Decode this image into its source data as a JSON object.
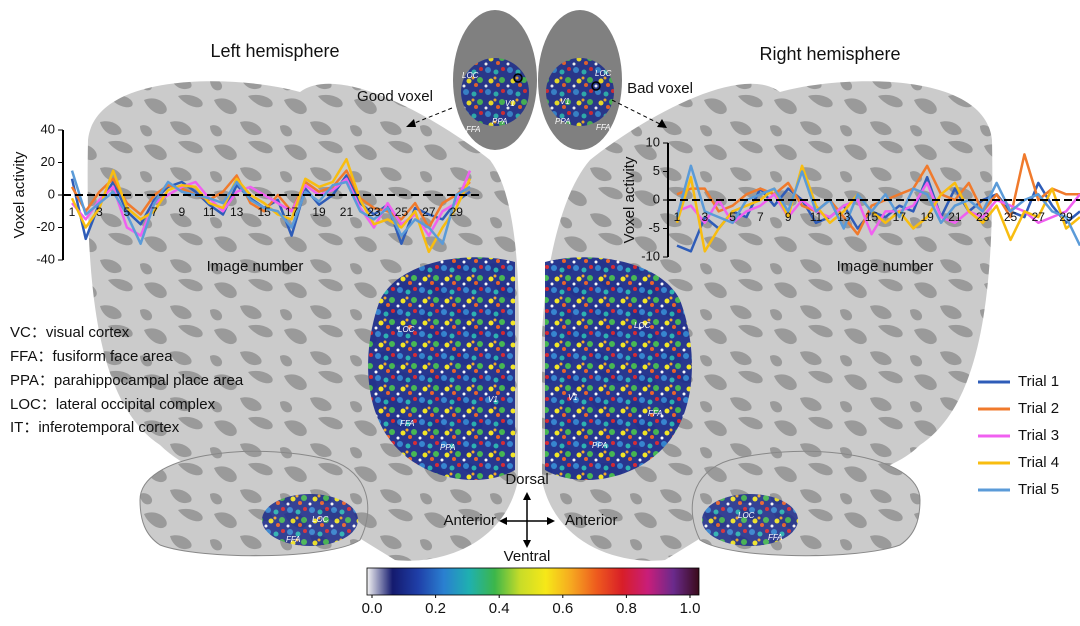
{
  "chart_data": [
    {
      "type": "line",
      "title": "Left hemisphere",
      "xlabel": "Image number",
      "ylabel": "Voxel activity",
      "x": [
        1,
        2,
        3,
        4,
        5,
        6,
        7,
        8,
        9,
        10,
        11,
        12,
        13,
        14,
        15,
        16,
        17,
        18,
        19,
        20,
        21,
        22,
        23,
        24,
        25,
        26,
        27,
        28,
        29,
        30
      ],
      "xlim": [
        1,
        30
      ],
      "xticks": [
        1,
        3,
        5,
        7,
        9,
        11,
        13,
        15,
        17,
        19,
        21,
        23,
        25,
        27,
        29
      ],
      "ylim": [
        -40,
        40
      ],
      "yticks": [
        -40,
        -20,
        0,
        20,
        40
      ],
      "series": [
        {
          "name": "Trial 1",
          "color": "#2e5cb8",
          "values": [
            10,
            -27,
            -5,
            8,
            -10,
            -18,
            -3,
            5,
            8,
            2,
            -6,
            -12,
            6,
            -2,
            -8,
            -3,
            -25,
            4,
            -6,
            0,
            12,
            -5,
            -12,
            -6,
            -30,
            -8,
            -12,
            -15,
            -4,
            2
          ]
        },
        {
          "name": "Trial 2",
          "color": "#f07a2c",
          "values": [
            5,
            -10,
            2,
            10,
            -5,
            -12,
            0,
            6,
            4,
            0,
            -3,
            2,
            12,
            -5,
            -10,
            0,
            -10,
            8,
            2,
            5,
            15,
            -2,
            -8,
            -10,
            -15,
            -5,
            -20,
            -5,
            0,
            8
          ]
        },
        {
          "name": "Trial 3",
          "color": "#f060f0",
          "values": [
            -5,
            -15,
            -3,
            5,
            -20,
            -25,
            -5,
            0,
            5,
            8,
            -2,
            -10,
            2,
            5,
            0,
            -5,
            -10,
            6,
            0,
            3,
            10,
            -8,
            -20,
            -5,
            -18,
            -12,
            -25,
            -10,
            -5,
            15
          ]
        },
        {
          "name": "Trial 4",
          "color": "#f8bd10",
          "values": [
            -2,
            -20,
            -8,
            15,
            -8,
            -15,
            -10,
            3,
            6,
            5,
            -5,
            -8,
            10,
            0,
            -5,
            -12,
            -15,
            10,
            5,
            8,
            22,
            -3,
            -18,
            -15,
            -20,
            -10,
            -35,
            -20,
            -8,
            10
          ]
        },
        {
          "name": "Trial 5",
          "color": "#5b9bd8",
          "values": [
            15,
            -12,
            -5,
            2,
            -12,
            -30,
            -5,
            8,
            2,
            0,
            -2,
            -5,
            8,
            -3,
            -8,
            -10,
            -20,
            2,
            -4,
            6,
            8,
            -10,
            -15,
            -8,
            -25,
            -15,
            -20,
            -30,
            0,
            5
          ]
        }
      ]
    },
    {
      "type": "line",
      "title": "Right hemisphere",
      "xlabel": "Image number",
      "ylabel": "Voxel activity",
      "x": [
        1,
        2,
        3,
        4,
        5,
        6,
        7,
        8,
        9,
        10,
        11,
        12,
        13,
        14,
        15,
        16,
        17,
        18,
        19,
        20,
        21,
        22,
        23,
        24,
        25,
        26,
        27,
        28,
        29,
        30
      ],
      "xlim": [
        1,
        30
      ],
      "xticks": [
        1,
        3,
        5,
        7,
        9,
        11,
        13,
        15,
        17,
        19,
        21,
        23,
        25,
        27,
        29
      ],
      "ylim": [
        -10,
        10
      ],
      "yticks": [
        -10,
        -5,
        0,
        5,
        10
      ],
      "series": [
        {
          "color": "#2e5cb8",
          "values": [
            -8,
            -9,
            -3,
            -5,
            -2,
            -3,
            2,
            -1,
            2,
            0,
            -4,
            -3,
            -1,
            -5,
            -2,
            -3,
            -1,
            -2,
            4,
            -3,
            2,
            -2,
            0,
            1,
            -2,
            -3,
            3,
            -1,
            -4,
            -2
          ]
        },
        {
          "color": "#f07a2c",
          "values": [
            1,
            2,
            2,
            -2,
            -1,
            1,
            2,
            1,
            3,
            -1,
            -2,
            0,
            -3,
            -6,
            -1,
            0,
            1,
            2,
            6,
            1,
            0,
            3,
            -2,
            1,
            -3,
            8,
            0,
            2,
            1,
            1
          ]
        },
        {
          "color": "#f060f0",
          "values": [
            -2,
            -1,
            -4,
            0,
            -4,
            -2,
            -1,
            1,
            -3,
            0,
            -2,
            -3,
            -1,
            0,
            -6,
            -2,
            -2,
            -1,
            3,
            -3,
            -4,
            -2,
            -3,
            0,
            -1,
            -2,
            -4,
            -3,
            -2,
            1
          ]
        },
        {
          "color": "#f8bd10",
          "values": [
            -4,
            4,
            -9,
            -5,
            -2,
            -1,
            0,
            2,
            -3,
            6,
            -1,
            -4,
            -2,
            1,
            -2,
            -4,
            -2,
            -5,
            -3,
            1,
            3,
            -2,
            -4,
            -1,
            -7,
            -2,
            -3,
            2,
            -5,
            -3
          ]
        },
        {
          "color": "#5b9bd8",
          "values": [
            -3,
            6,
            -2,
            -3,
            -4,
            0,
            1,
            2,
            -2,
            5,
            -2,
            0,
            -5,
            1,
            -2,
            1,
            -3,
            2,
            1,
            -4,
            -1,
            0,
            -2,
            3,
            -2,
            0,
            1,
            -2,
            -3,
            -8
          ]
        }
      ]
    },
    {
      "type": "colorbar",
      "xlim": [
        0,
        1
      ],
      "xticks": [
        {
          "value": 0,
          "label": "0.0"
        },
        0.2,
        0.4,
        0.6,
        0.8,
        {
          "value": 1,
          "label": "1.0"
        }
      ],
      "colormap": [
        "#f4f4f4",
        "#141a6e",
        "#1f3fa8",
        "#2a7fd0",
        "#1fb0b0",
        "#3cb64a",
        "#c8dc28",
        "#f6e818",
        "#f6a820",
        "#ee5a1e",
        "#d81e28",
        "#c81e7a",
        "#6a2a8c",
        "#3a0a1a"
      ]
    }
  ],
  "annotations": {
    "good_voxel": "Good voxel",
    "bad_voxel": "Bad voxel",
    "dorsal": "Dorsal",
    "ventral": "Ventral",
    "anterior_left": "Anterior",
    "anterior_right": "Anterior"
  },
  "abbreviations": [
    "VC：visual cortex",
    "FFA：fusiform face area",
    "PPA：parahippocampal place area",
    "LOC：lateral occipital complex",
    "IT：inferotemporal cortex"
  ],
  "brain_labels": [
    "LOC",
    "V1",
    "FFA",
    "PPA",
    "LOC",
    "V1",
    "PPA",
    "FFA",
    "LOC",
    "V1",
    "FFA",
    "PPA",
    "LOC",
    "V1",
    "PPA",
    "FFA",
    "LOC",
    "FFA",
    "LOC",
    "FFA"
  ]
}
